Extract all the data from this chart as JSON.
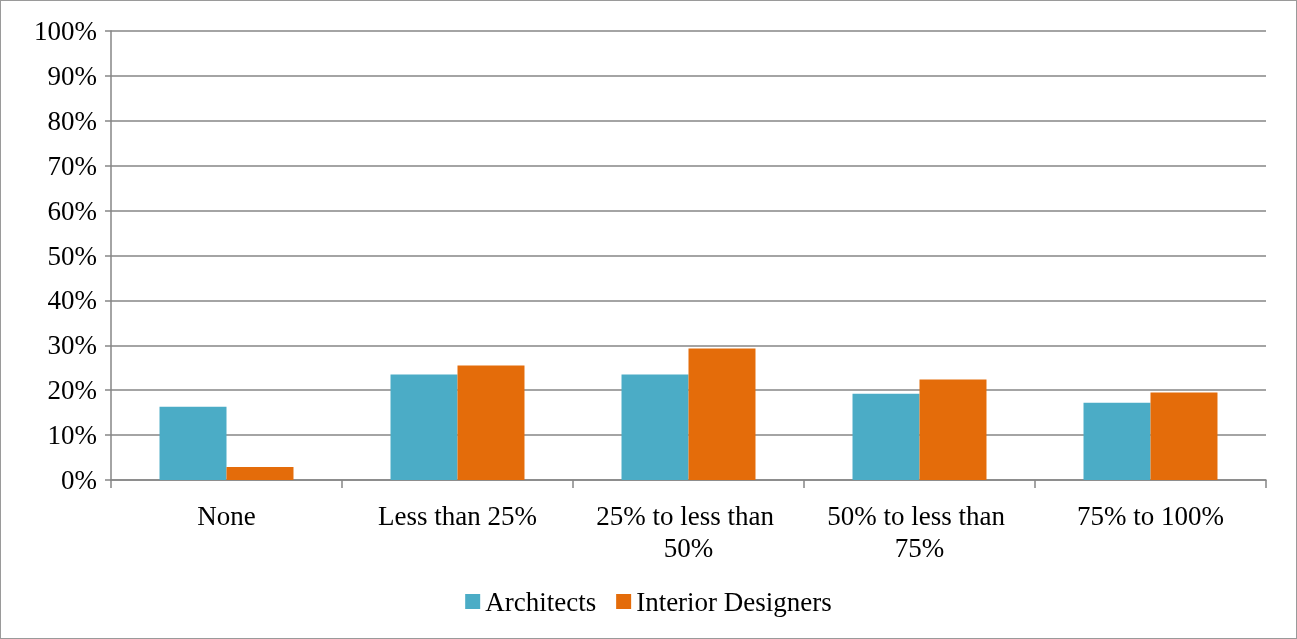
{
  "chart_data": {
    "type": "bar",
    "categories": [
      "None",
      "Less than 25%",
      "25% to less than 50%",
      "50% to less than 75%",
      "75% to 100%"
    ],
    "series": [
      {
        "name": "Architects",
        "color": "#4bacc6",
        "values": [
          16.3,
          23.5,
          23.5,
          19.2,
          17.2
        ]
      },
      {
        "name": "Interior Designers",
        "color": "#e46c0a",
        "values": [
          2.9,
          25.5,
          29.3,
          22.4,
          19.5
        ]
      }
    ],
    "ylim": [
      0,
      100
    ],
    "yticks": [
      {
        "value": 0,
        "label": "0%"
      },
      {
        "value": 10,
        "label": "10%"
      },
      {
        "value": 20,
        "label": "20%"
      },
      {
        "value": 30,
        "label": "30%"
      },
      {
        "value": 40,
        "label": "40%"
      },
      {
        "value": 50,
        "label": "50%"
      },
      {
        "value": 60,
        "label": "60%"
      },
      {
        "value": 70,
        "label": "70%"
      },
      {
        "value": 80,
        "label": "80%"
      },
      {
        "value": 90,
        "label": "90%"
      },
      {
        "value": 100,
        "label": "100%"
      }
    ],
    "grid": "y",
    "legend": "bottom"
  }
}
